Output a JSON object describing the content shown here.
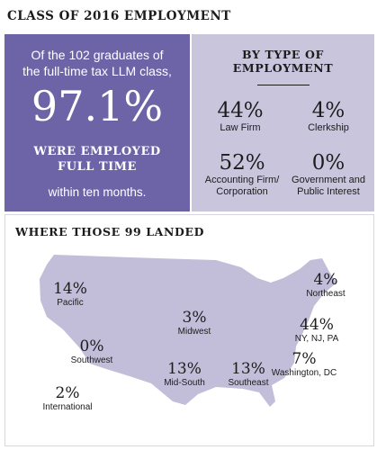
{
  "title": "CLASS OF 2016 EMPLOYMENT",
  "summary": {
    "intro_line1": "Of the 102 graduates of",
    "intro_line2": "the full-time tax LLM class,",
    "headline_pct": "97.1%",
    "employed_line1": "WERE EMPLOYED",
    "employed_line2": "FULL TIME",
    "timeframe": "within ten months."
  },
  "by_type": {
    "heading_line1": "BY TYPE OF",
    "heading_line2": "EMPLOYMENT",
    "items": [
      {
        "pct": "44%",
        "label_line1": "Law Firm",
        "label_line2": ""
      },
      {
        "pct": "4%",
        "label_line1": "Clerkship",
        "label_line2": ""
      },
      {
        "pct": "52%",
        "label_line1": "Accounting Firm/",
        "label_line2": "Corporation"
      },
      {
        "pct": "0%",
        "label_line1": "Government and",
        "label_line2": "Public Interest"
      }
    ]
  },
  "landed": {
    "heading": "WHERE THOSE 99 LANDED",
    "map_color": "#c2bdd8",
    "regions": [
      {
        "pct": "14%",
        "label": "Pacific"
      },
      {
        "pct": "3%",
        "label": "Midwest"
      },
      {
        "pct": "4%",
        "label": "Northeast"
      },
      {
        "pct": "44%",
        "label": "NY, NJ, PA"
      },
      {
        "pct": "0%",
        "label": "Southwest"
      },
      {
        "pct": "7%",
        "label": "Washington, DC"
      },
      {
        "pct": "13%",
        "label": "Mid-South"
      },
      {
        "pct": "13%",
        "label": "Southeast"
      },
      {
        "pct": "2%",
        "label": "International"
      }
    ]
  },
  "colors": {
    "left_panel": "#6c64a6",
    "right_panel": "#c9c5dd",
    "text_dark": "#1c1c1c"
  }
}
